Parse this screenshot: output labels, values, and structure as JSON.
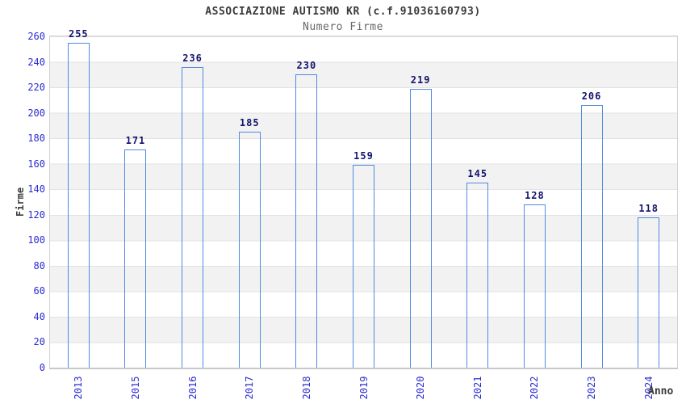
{
  "header": {
    "title": "ASSOCIAZIONE AUTISMO KR (c.f.91036160793)",
    "subtitle": "Numero Firme"
  },
  "chart_data": {
    "type": "bar",
    "title": "ASSOCIAZIONE AUTISMO KR (c.f.91036160793)",
    "subtitle": "Numero Firme",
    "xlabel": "Anno",
    "ylabel": "Firme",
    "categories": [
      "2013",
      "2015",
      "2016",
      "2017",
      "2018",
      "2019",
      "2020",
      "2021",
      "2022",
      "2023",
      "2024"
    ],
    "values": [
      255,
      171,
      236,
      185,
      230,
      159,
      219,
      145,
      128,
      206,
      118
    ],
    "ylim": [
      0,
      260
    ],
    "ytick_step": 20,
    "grid": true,
    "legend": "none",
    "band_pattern": "alternating white/gray horizontal bands every 20 units",
    "colors": {
      "bar_dark": "#18187c",
      "bar_light": "#a8b4dc",
      "bar_border": "#4f8ae4",
      "tick_label": "#2b2bd0",
      "value_label": "#13136d",
      "title": "#3b3b3b",
      "subtitle": "#686868",
      "axis_title": "#3b3b3b",
      "band_gray": "#f2f2f2",
      "gridline": "#e2e2e2",
      "frame": "#d2d2d2"
    }
  }
}
